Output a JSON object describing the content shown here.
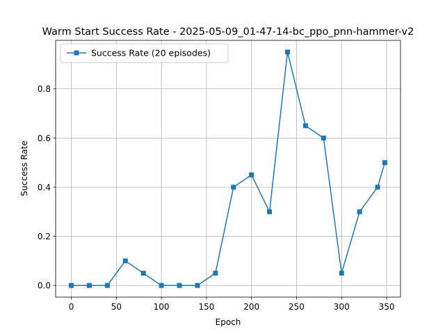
{
  "chart_data": {
    "type": "line",
    "title": "Warm Start Success Rate - 2025-05-09_01-47-14-bc_ppo_pnn-hammer-v2",
    "xlabel": "Epoch",
    "ylabel": "Success Rate",
    "xlim": [
      -17.4,
      365.4
    ],
    "ylim": [
      -0.0475,
      0.9975
    ],
    "xticks": [
      0,
      50,
      100,
      150,
      200,
      250,
      300,
      350
    ],
    "yticks": [
      0.0,
      0.2,
      0.4,
      0.6,
      0.8
    ],
    "ytick_labels": [
      "0.0",
      "0.2",
      "0.4",
      "0.6",
      "0.8"
    ],
    "grid": true,
    "legend_position": "upper left",
    "marker": "square",
    "color": "#1f77b4",
    "series": [
      {
        "name": "Success Rate (20 episodes)",
        "x": [
          0,
          20,
          40,
          60,
          80,
          100,
          120,
          140,
          160,
          180,
          200,
          220,
          240,
          260,
          280,
          300,
          320,
          340,
          348
        ],
        "y": [
          0.0,
          0.0,
          0.0,
          0.1,
          0.05,
          0.0,
          0.0,
          0.0,
          0.05,
          0.4,
          0.45,
          0.3,
          0.95,
          0.65,
          0.6,
          0.05,
          0.3,
          0.4,
          0.5
        ]
      }
    ]
  }
}
